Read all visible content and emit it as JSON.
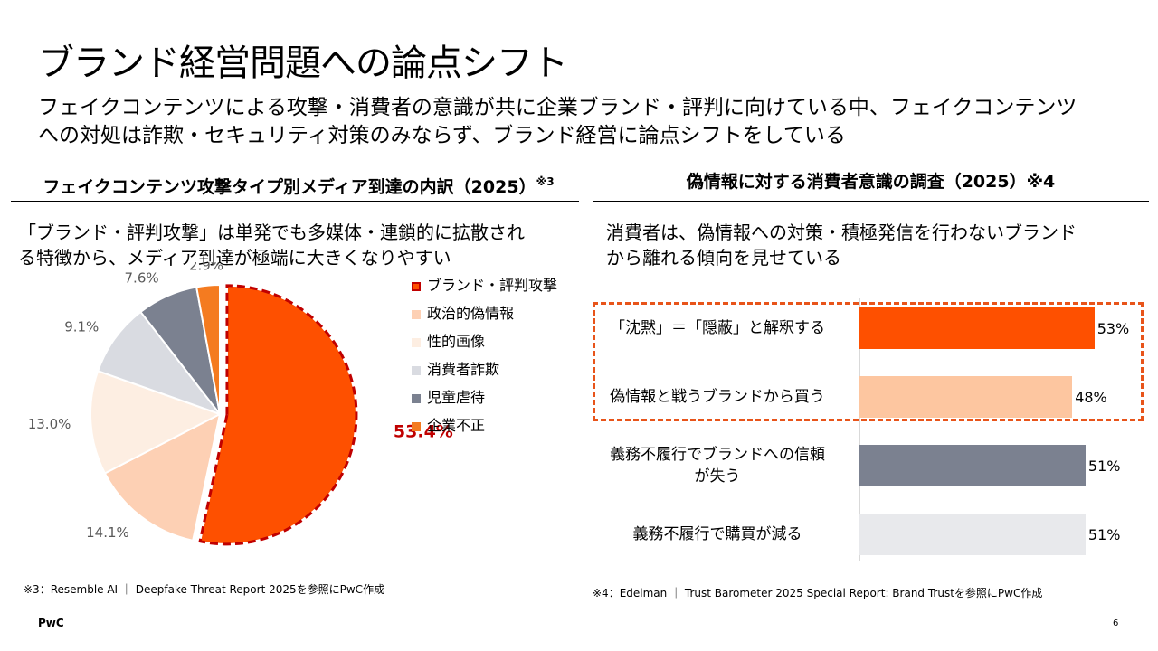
{
  "slide": {
    "title": "ブランド経営問題への論点シフト",
    "subtitle_line1": "フェイクコンテンツによる攻撃・消費者の意識が共に企業ブランド・評判に向けている中、フェイクコンテンツ",
    "subtitle_line2": "への対処は詐欺・セキュリティ対策のみならず、ブランド経営に論点シフトをしている",
    "logo": "PwC",
    "page_number": "6"
  },
  "left": {
    "title": "フェイクコンテンツ攻撃タイプ別メディア到達の内訳（2025）",
    "title_note": "※3",
    "lead_line1": "「ブランド・評判攻撃」は単発でも多媒体・連鎖的に拡散され",
    "lead_line2": "る特徴から、メディア到達が極端に大きくなりやすい",
    "footnote": "※3：Resemble AI ｜ Deepfake Threat Report 2025を参照にPwC作成"
  },
  "right": {
    "title": "偽情報に対する消費者意識の調査（2025）※4",
    "lead_line1": "消費者は、偽情報への対策・積極発信を行わないブランド",
    "lead_line2": "から離れる傾向を見せている",
    "footnote": "※4：Edelman ｜ Trust Barometer 2025 Special Report: Brand Trustを参照にPwC作成"
  },
  "chart_data": [
    {
      "type": "pie",
      "title": "フェイクコンテンツ攻撃タイプ別メディア到達の内訳（2025）",
      "unit": "%",
      "start": "12 o'clock, clockwise",
      "slices": [
        {
          "label": "ブランド・評判攻撃",
          "value": 53.4,
          "value_label": "53.4%",
          "color": "#fe5000",
          "highlighted": true
        },
        {
          "label": "政治的偽情報",
          "value": 14.1,
          "value_label": "14.1%",
          "color": "#fdd0b4"
        },
        {
          "label": "性的画像",
          "value": 13.0,
          "value_label": "13.0%",
          "color": "#fdeee2"
        },
        {
          "label": "消費者詐欺",
          "value": 9.1,
          "value_label": "9.1%",
          "color": "#d9dbe1"
        },
        {
          "label": "児童虐待",
          "value": 7.6,
          "value_label": "7.6%",
          "color": "#7b8190"
        },
        {
          "label": "企業不正",
          "value": 2.9,
          "value_label": "2.9%",
          "color": "#f47b20"
        }
      ],
      "legend": "right",
      "highlight_color": "#c00000"
    },
    {
      "type": "bar",
      "orientation": "horizontal",
      "title": "偽情報に対する消費者意識の調査（2025）",
      "unit": "%",
      "categories": [
        "「沈黙」＝「隠蔽」と解釈する",
        "偽情報と戦うブランドから買う",
        "義務不履行でブランドへの信頼が失う",
        "義務不履行で購買が減る"
      ],
      "category_lines": [
        [
          "「沈黙」＝「隠蔽」と解釈する"
        ],
        [
          "偽情報と戦うブランドから買う"
        ],
        [
          "義務不履行でブランドへの信頼",
          "が失う"
        ],
        [
          "義務不履行で購買が減る"
        ]
      ],
      "values": [
        53,
        48,
        51,
        51
      ],
      "value_labels": [
        "53%",
        "48%",
        "51%",
        "51%"
      ],
      "colors": [
        "#fe5000",
        "#fdc6a0",
        "#7b8190",
        "#e8e9ec"
      ],
      "xlim": [
        0,
        100
      ],
      "highlighted_categories": [
        0,
        1
      ],
      "highlight_color": "#e8541a"
    }
  ]
}
